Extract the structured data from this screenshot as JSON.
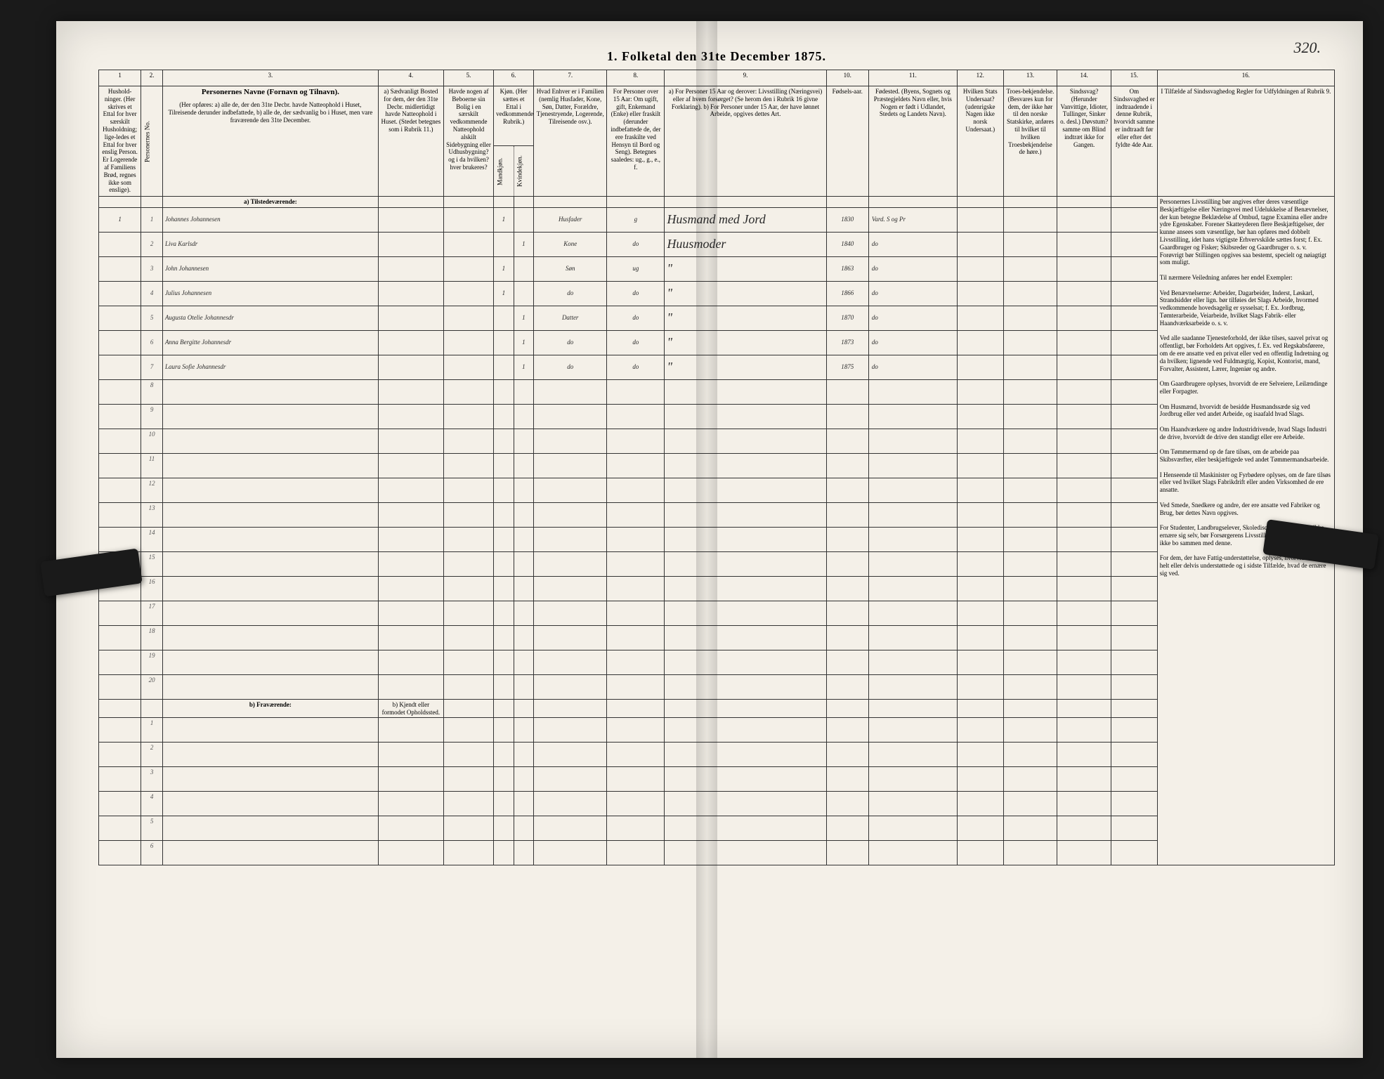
{
  "title": "1. Folketal den 31te December 1875.",
  "page_number": "320.",
  "columns": {
    "c1": "1",
    "c2": "2.",
    "c3": "3.",
    "c4": "4.",
    "c5": "5.",
    "c6": "6.",
    "c7": "7.",
    "c8": "8.",
    "c9": "9.",
    "c10": "10.",
    "c11": "11.",
    "c12": "12.",
    "c13": "13.",
    "c14": "14.",
    "c15": "15.",
    "c16": "16."
  },
  "headers": {
    "h1": "Hushold-ninger.\n(Her skrives et Ettal for hver særskilt Husholdning; lige-ledes et Ettal for hver enslig Person.\nEr Logerende af Familiens Brød, regnes ikke som enslige).",
    "h2": "Personernes No.",
    "h3_title": "Personernes Navne (Fornavn og Tilnavn).",
    "h3_a": "(Her opføres:\na) alle de, der den 31te Decbr. havde Natteophold i Huset, Tilreisende derunder indbefattede,\nb) alle de, der sædvanlig bo i Huset, men vare fraværende den 31te December.",
    "h4": "a) Sædvanligt Bosted for dem, der den 31te Decbr. midlertidigt havde Natteophold i Huset.\n(Stedet betegnes som i Rubrik 11.)",
    "h5": "Havde nogen af Beboerne sin Bolig i en særskilt vedkommende Natteophold alskilt Sidebygning eller Udhusbygning? og i da hvilken? hver brukeres?",
    "h6": "Kjøn.\n(Her sættes et Ettal i vedkommende Rubrik.)",
    "h6a": "Mandkjøn.",
    "h6b": "Kvindekjøn.",
    "h7": "Hvad Enhver er i Familien\n(nemlig Husfader, Kone, Søn, Datter, Forældre, Tjenestryende, Logerende, Tilreisende osv.).",
    "h8": "For Personer over 15 Aar:\nOm ugift, gift, Enkemand (Enke) eller fraskilt\n(derunder indbefattede de, der ere fraskilte ved Hensyn til Bord og Seng).\nBetegnes saaledes:\nug., g., e., f.",
    "h9": "a) For Personer 15 Aar og derover: Livsstilling (Næringsvei) eller af hvem forsørget? (Se herom den i Rubrik 16 givne Forklaring).\nb) For Personer under 15 Aar, der have lønnet Arbeide, opgives dettes Art.",
    "h10": "Fødsels-aar.",
    "h11": "Fødested.\n(Byens, Sognets og Præstegjeldets Navn eller, hvis Nogen er født i Udlandet, Stedets og Landets Navn).",
    "h12": "Hvilken Stats Undersaat?\n(udenrigske Nagen ikke norsk Undersaat.)",
    "h13": "Troes-bekjendelse.\n(Besvares kun for dem, der ikke hør til den norske Statskirke, anføres til hvilket til hvilken Troesbekjendelse de høre.)",
    "h14": "Sindssvag?\n(Herunder Vanvittige, Idioter, Tullinger, Sinker o. desl.) Døvstum? samme om Blind indtræt ikke for Gangen.",
    "h15": "Om Sindssvaghed er indtraadende i denne Rubrik, hvorvidt samme er indtraadt før eller efter det fyldte 4de Aar.",
    "h16": "I Tilfælde af Sindssvaghedog\n\nRegler for Udfyldningen\naf\nRubrik 9."
  },
  "section_a": "a) Tilstedeværende:",
  "section_b": "b) Fraværende:",
  "section_b4": "b) Kjendt eller formodet Opholdssted.",
  "rows": [
    {
      "hh": "1",
      "no": "1",
      "name": "Johannes Johannesen",
      "m": "1",
      "f": "",
      "rel": "Husfader",
      "ms": "g",
      "occ": "Husmand med Jord",
      "yr": "1830",
      "bp": "Vard. S og Pr"
    },
    {
      "hh": "",
      "no": "2",
      "name": "Liva Karlsdr",
      "m": "",
      "f": "1",
      "rel": "Kone",
      "ms": "do",
      "occ": "Huusmoder",
      "yr": "1840",
      "bp": "do"
    },
    {
      "hh": "",
      "no": "3",
      "name": "John Johannesen",
      "m": "1",
      "f": "",
      "rel": "Søn",
      "ms": "ug",
      "occ": "\"",
      "yr": "1863",
      "bp": "do"
    },
    {
      "hh": "",
      "no": "4",
      "name": "Julius Johannesen",
      "m": "1",
      "f": "",
      "rel": "do",
      "ms": "do",
      "occ": "\"",
      "yr": "1866",
      "bp": "do"
    },
    {
      "hh": "",
      "no": "5",
      "name": "Augusta Otelie Johannesdr",
      "m": "",
      "f": "1",
      "rel": "Datter",
      "ms": "do",
      "occ": "\"",
      "yr": "1870",
      "bp": "do"
    },
    {
      "hh": "",
      "no": "6",
      "name": "Anna Bergitte Johannesdr",
      "m": "",
      "f": "1",
      "rel": "do",
      "ms": "do",
      "occ": "\"",
      "yr": "1873",
      "bp": "do"
    },
    {
      "hh": "",
      "no": "7",
      "name": "Laura Sofie Johannesdr",
      "m": "",
      "f": "1",
      "rel": "do",
      "ms": "do",
      "occ": "\"",
      "yr": "1875",
      "bp": "do"
    }
  ],
  "empty_rows_a": [
    "8",
    "9",
    "10",
    "11",
    "12",
    "13",
    "14",
    "15",
    "16",
    "17",
    "18",
    "19",
    "20"
  ],
  "empty_rows_b": [
    "1",
    "2",
    "3",
    "4",
    "5",
    "6"
  ],
  "instructions_text": "Personernes Livsstilling bør angives efter deres væsentlige Beskjæftigelse eller Næringsvei med Udelukkelse af Benævnelser, der kun betegne Beklædelse af Ombud, tagne Examina eller andre ydre Egenskaber. Forener Skatteyderen flere Beskjæftigelser, der kunne ansees som væsentlige, bør han opføres med dobbelt Livsstilling, idet hans vigtigste Erhvervskilde sættes forst; f. Ex. Gaardbruger og Fisker; Skibsreder og Gaardbruger o. s. v. Forøvrigt bør Stillingen opgives saa bestemt, specielt og nøiagtigt som muligt.\n\nTil nærmere Veiledning anføres her endel Exempler:\n\nVed Benævnelserne: Arbeider, Dagarbeider, Inderst, Løskarl, Strandsidder eller lign. bør tilføies det Slags Arbeide, hvormed vedkommende hovedsagelig er sysselsat; f. Ex. Jordbrug, Tømterarbeide, Veiarbeide, hvilket Slags Fabrik- eller Haandværksarbeide o. s. v.\n\nVed alle saadanne Tjenesteforhold, der ikke tilses, saavel privat og offentligt, bør Forholdets Art opgives, f. Ex. ved Regskabsførere, om de ere ansatte ved en privat eller ved en offentlig Indretning og da hvilken; lignende ved Fuldmægtig, Kopist, Kontorist, mand, Forvalter, Assistent, Lærer, Ingeniør og andre.\n\nOm Gaardbrugere oplyses, hvorvidt de ere Selveiere, Leilændinge eller Forpagter.\n\nOm Husmænd, hvorvidt de besidde Husmandssæde sig ved Jordbrug eller ved andet Arbeide, og isaafald hvad Slags.\n\nOm Haandværkere og andre Industridrivende, hvad Slags Industri de drive, hvorvidt de drive den standigt eller ere Arbeide.\n\nOm Tømmermænd op de fare tilsøs, om de arbeide paa Skibsværfter, eller beskjæftigede ved andet Tømmermandsarbeide.\n\nI Henseende til Maskinister og Fyrbødere oplyses, om de fare tilsøs eller ved hvilket Slags Fabrikdrift eller anden Virksomhed de ere ansatte.\n\nVed Smede, Snedkere og andre, der ere ansatte ved Fabriker og Brug, bør dettes Navn opgives.\n\nFor Studenter, Landbrugselever, Skoledisciple og andre, der ikke ernære sig selv, bør Forsørgerens Livsstilling opgives, forsaavidt de ikke bo sammen med denne.\n\nFor dem, der have Fattig-understøttelse, oplyses, hvorvidt de ere helt eller delvis understøttede og i sidste Tilfælde, hvad de ernære sig ved."
}
